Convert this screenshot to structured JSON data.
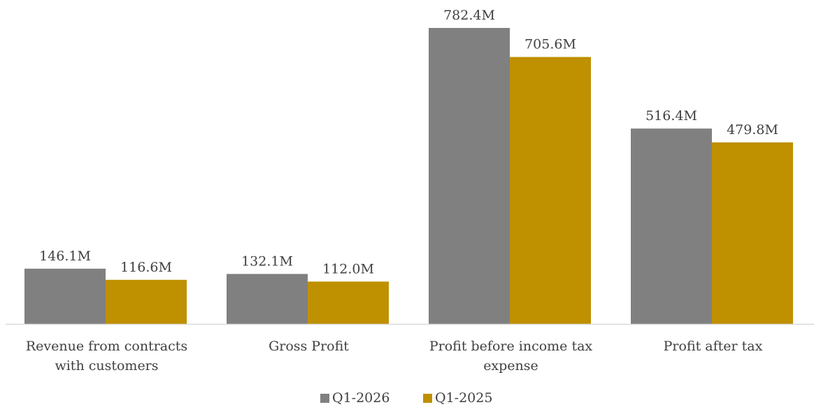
{
  "chart_data": {
    "type": "bar",
    "title": "",
    "xlabel": "",
    "ylabel": "",
    "categories": [
      "Revenue from contracts with customers",
      "Gross Profit",
      "Profit before income tax expense",
      "Profit after tax"
    ],
    "series": [
      {
        "name": "Q1-2026",
        "color": "#808080",
        "values": [
          146.1,
          132.1,
          782.4,
          516.4
        ],
        "labels": [
          "146.1M",
          "132.1M",
          "782.4M",
          "516.4M"
        ]
      },
      {
        "name": "Q1-2025",
        "color": "#BF9000",
        "values": [
          116.6,
          112.0,
          705.6,
          479.8
        ],
        "labels": [
          "116.6M",
          "112.0M",
          "705.6M",
          "479.8M"
        ]
      }
    ],
    "ylim": [
      0,
      782.4
    ],
    "grid": false,
    "legend_position": "bottom"
  }
}
